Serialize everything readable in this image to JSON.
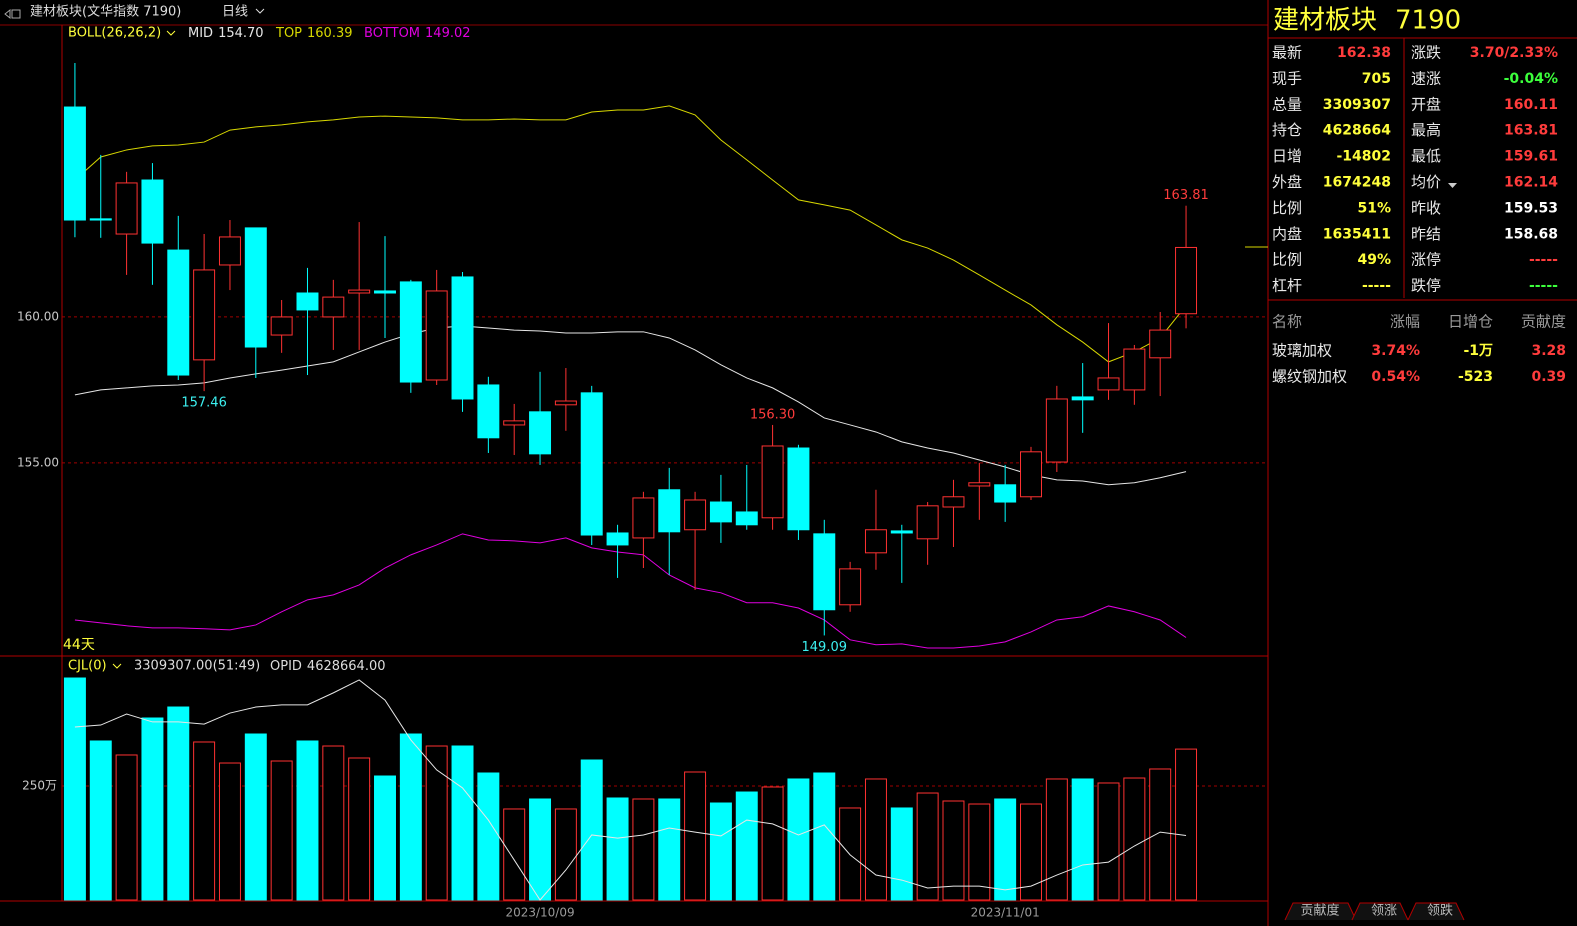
{
  "toolbar": {
    "title": "建材板块(文华指数 7190)",
    "period": "日线"
  },
  "chart_data": [
    {
      "type": "candlestick",
      "indicator": "BOLL(26,26,2)",
      "day_count": "44天",
      "up_color": "#ff3232",
      "down_color": "#00ffff",
      "open": [
        167.19,
        163.36,
        162.84,
        164.69,
        162.29,
        158.53,
        161.78,
        163.05,
        159.38,
        160.82,
        160.0,
        160.82,
        160.89,
        161.2,
        157.84,
        161.37,
        157.67,
        156.3,
        156.75,
        156.99,
        157.4,
        152.6,
        152.43,
        154.08,
        152.71,
        153.66,
        153.32,
        153.12,
        155.51,
        152.57,
        150.14,
        151.92,
        152.67,
        152.4,
        153.49,
        154.21,
        154.25,
        153.84,
        155.03,
        157.26,
        157.5,
        157.5,
        158.6,
        160.11
      ],
      "high": [
        168.7,
        165.55,
        164.97,
        165.27,
        163.46,
        162.84,
        163.32,
        163.05,
        160.58,
        161.68,
        161.27,
        163.25,
        162.77,
        161.27,
        161.61,
        161.54,
        157.95,
        157.02,
        158.12,
        158.25,
        157.64,
        152.88,
        154.01,
        154.83,
        154.01,
        154.59,
        154.93,
        156.3,
        155.62,
        153.05,
        151.61,
        154.08,
        152.88,
        153.66,
        154.42,
        155.0,
        154.93,
        155.55,
        157.64,
        158.42,
        159.79,
        159.04,
        160.17,
        163.81
      ],
      "low": [
        162.73,
        162.71,
        161.44,
        161.1,
        157.84,
        157.46,
        160.92,
        157.91,
        158.77,
        158.01,
        158.87,
        158.87,
        159.28,
        157.4,
        157.67,
        156.75,
        155.34,
        155.27,
        154.93,
        156.1,
        152.19,
        151.06,
        151.4,
        151.16,
        150.65,
        152.26,
        152.71,
        152.71,
        152.36,
        149.09,
        149.9,
        151.34,
        150.89,
        151.51,
        152.12,
        153.05,
        152.98,
        153.73,
        154.69,
        156.03,
        157.16,
        156.99,
        157.29,
        159.61
      ],
      "close": [
        163.32,
        163.32,
        164.59,
        162.53,
        158.01,
        161.61,
        162.74,
        158.97,
        160.0,
        160.24,
        160.68,
        160.92,
        160.82,
        157.77,
        160.89,
        157.19,
        155.86,
        156.44,
        155.31,
        157.12,
        152.53,
        152.19,
        153.8,
        152.64,
        153.73,
        152.98,
        152.88,
        155.58,
        152.71,
        149.97,
        151.37,
        152.71,
        152.6,
        153.53,
        153.84,
        154.32,
        153.66,
        155.38,
        157.19,
        157.16,
        157.91,
        158.9,
        159.55,
        162.38
      ],
      "series": [
        {
          "name": "MID",
          "last_label": "154.70",
          "color": "#e6e6e6",
          "values": [
            157.33,
            157.5,
            157.57,
            157.64,
            157.67,
            157.74,
            157.91,
            158.05,
            158.18,
            158.32,
            158.46,
            158.8,
            159.14,
            159.42,
            159.62,
            159.69,
            159.62,
            159.55,
            159.52,
            159.45,
            159.45,
            159.49,
            159.49,
            159.28,
            158.87,
            158.36,
            157.91,
            157.57,
            157.09,
            156.54,
            156.3,
            156.06,
            155.72,
            155.51,
            155.34,
            155.1,
            154.86,
            154.59,
            154.42,
            154.38,
            154.25,
            154.32,
            154.49,
            154.7
          ]
        },
        {
          "name": "TOP",
          "last_label": "160.39",
          "color": "#d8d800",
          "values": [
            164.69,
            165.48,
            165.72,
            165.86,
            165.89,
            165.99,
            166.4,
            166.51,
            166.58,
            166.68,
            166.75,
            166.85,
            166.88,
            166.85,
            166.82,
            166.75,
            166.75,
            166.78,
            166.75,
            166.75,
            167.02,
            167.09,
            167.09,
            167.23,
            166.92,
            166.06,
            165.38,
            164.69,
            164.01,
            163.84,
            163.66,
            163.15,
            162.64,
            162.36,
            161.95,
            161.44,
            160.92,
            160.41,
            159.73,
            159.14,
            158.46,
            158.8,
            159.28,
            160.39
          ]
        },
        {
          "name": "BOTTOM",
          "last_label": "149.02",
          "color": "#e000e0",
          "values": [
            149.62,
            149.52,
            149.42,
            149.35,
            149.35,
            149.32,
            149.28,
            149.45,
            149.9,
            150.31,
            150.48,
            150.82,
            151.4,
            151.85,
            152.19,
            152.57,
            152.36,
            152.33,
            152.26,
            152.43,
            152.09,
            151.95,
            151.85,
            151.16,
            150.72,
            150.55,
            150.21,
            150.21,
            150.03,
            149.62,
            148.94,
            148.77,
            148.8,
            148.66,
            148.66,
            148.73,
            148.87,
            149.21,
            149.62,
            149.73,
            150.1,
            149.9,
            149.62,
            149.02
          ]
        }
      ],
      "annotations": [
        {
          "value": 163.81,
          "label": "163.81",
          "color": "#ff3c3c"
        },
        {
          "value": 157.46,
          "label": "157.46",
          "color": "#3cf0f0"
        },
        {
          "value": 156.3,
          "label": "156.30",
          "color": "#ff3c3c"
        },
        {
          "value": 149.09,
          "label": "149.09",
          "color": "#3cf0f0"
        }
      ],
      "ylim": [
        148.42,
        170.0
      ],
      "yticks": [
        {
          "value": 155,
          "label": "155.00"
        },
        {
          "value": 160,
          "label": "160.00"
        }
      ],
      "grid": true
    },
    {
      "type": "bar",
      "indicator": "CJL(0)",
      "summary": "3309307.00(51:49)",
      "categories": [
        null,
        null,
        null,
        null,
        null,
        null,
        null,
        null,
        null,
        null,
        null,
        null,
        null,
        null,
        null,
        null,
        null,
        null,
        "2023/10/09",
        null,
        null,
        null,
        null,
        null,
        null,
        null,
        null,
        null,
        null,
        null,
        null,
        null,
        null,
        null,
        null,
        null,
        "2023/11/01",
        null,
        null,
        null,
        null,
        null,
        null,
        null
      ],
      "values": [
        486.8,
        348.7,
        318.0,
        399.1,
        423.2,
        346.5,
        300.4,
        364.0,
        304.8,
        348.7,
        337.7,
        311.4,
        271.9,
        364.0,
        337.7,
        337.7,
        278.5,
        199.6,
        221.5,
        199.6,
        307.0,
        223.7,
        221.5,
        221.5,
        280.7,
        212.7,
        236.8,
        247.8,
        265.4,
        278.5,
        201.8,
        265.4,
        201.8,
        234.6,
        217.1,
        210.5,
        221.5,
        210.5,
        265.4,
        265.4,
        256.6,
        267.5,
        287.3,
        330.93
      ],
      "ylim": [
        0,
        526.3
      ],
      "yticks": [
        {
          "value": 250,
          "label": "250万"
        }
      ],
      "grid": true,
      "series": [
        {
          "name": "OPID",
          "last_label": "4628664.00",
          "color": "#e6e6e6",
          "axis": "y2",
          "values": [
            508.1,
            508.9,
            513.5,
            510.2,
            510.2,
            509.3,
            513.9,
            516.4,
            517.3,
            517.3,
            522.3,
            527.7,
            519.3,
            502.7,
            490.2,
            482.7,
            469.3,
            452.7,
            436.0,
            448.5,
            463.1,
            461.8,
            463.1,
            466.0,
            464.3,
            462.7,
            469.3,
            467.7,
            463.1,
            467.3,
            454.8,
            446.4,
            444.3,
            441.0,
            441.8,
            441.8,
            440.2,
            441.8,
            446.4,
            450.6,
            451.8,
            458.5,
            464.3,
            462.87
          ]
        }
      ],
      "y2lim": [
        436,
        536
      ]
    }
  ],
  "quote_panel": {
    "name": "建材板块",
    "code": "7190",
    "left": [
      {
        "label": "最新",
        "value": "162.38",
        "color": "#ff3c3c"
      },
      {
        "label": "现手",
        "value": "705",
        "color": "#ffff3c"
      },
      {
        "label": "总量",
        "value": "3309307",
        "color": "#ffff3c"
      },
      {
        "label": "持仓",
        "value": "4628664",
        "color": "#ffff3c"
      },
      {
        "label": "日增",
        "value": "-14802",
        "color": "#ffff3c"
      },
      {
        "label": "外盘",
        "value": "1674248",
        "color": "#ffff3c"
      },
      {
        "label": "比例",
        "value": "51%",
        "color": "#ffff3c"
      },
      {
        "label": "内盘",
        "value": "1635411",
        "color": "#ffff3c"
      },
      {
        "label": "比例",
        "value": "49%",
        "color": "#ffff3c"
      },
      {
        "label": "杠杆",
        "value": "-----",
        "color": "#ffff3c"
      }
    ],
    "right": [
      {
        "label": "涨跌",
        "value": "3.70/2.33%",
        "color": "#ff3c3c"
      },
      {
        "label": "速涨",
        "value": "-0.04%",
        "color": "#3cff3c"
      },
      {
        "label": "开盘",
        "value": "160.11",
        "color": "#ff3c3c"
      },
      {
        "label": "最高",
        "value": "163.81",
        "color": "#ff3c3c"
      },
      {
        "label": "最低",
        "value": "159.61",
        "color": "#ff3c3c"
      },
      {
        "label": "均价",
        "value": "162.14",
        "color": "#ff3c3c"
      },
      {
        "label": "昨收",
        "value": "159.53",
        "color": "#ffffff"
      },
      {
        "label": "昨结",
        "value": "158.68",
        "color": "#ffffff"
      },
      {
        "label": "涨停",
        "value": "-----",
        "color": "#ff3c3c"
      },
      {
        "label": "跌停",
        "value": "-----",
        "color": "#3cff3c"
      }
    ]
  },
  "contribution_table": {
    "header": [
      "名称",
      "涨幅",
      "日增仓",
      "贡献度"
    ],
    "rows": [
      [
        "玻璃加权",
        "3.74%",
        "-1万",
        "3.28"
      ],
      [
        "螺纹钢加权",
        "0.54%",
        "-523",
        "0.39"
      ]
    ]
  },
  "tabs": [
    "贡献度",
    "领涨",
    "领跌"
  ]
}
